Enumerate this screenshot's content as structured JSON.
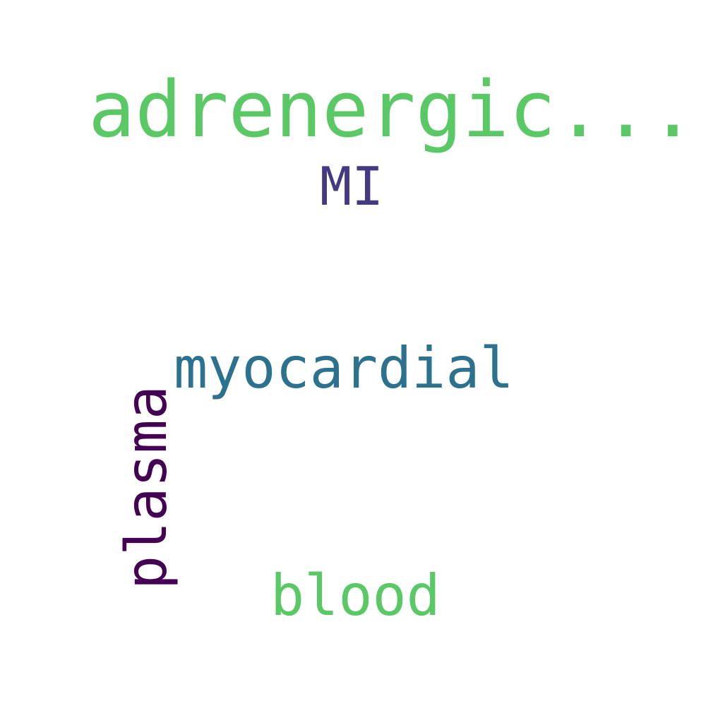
{
  "words": [
    {
      "text": "adrenergic...",
      "color": "#5ac864"
    },
    {
      "text": "MI",
      "color": "#443983"
    },
    {
      "text": "myocardial",
      "color": "#2c728e"
    },
    {
      "text": "plasma",
      "color": "#440154"
    },
    {
      "text": "blood",
      "color": "#5ac864"
    }
  ]
}
